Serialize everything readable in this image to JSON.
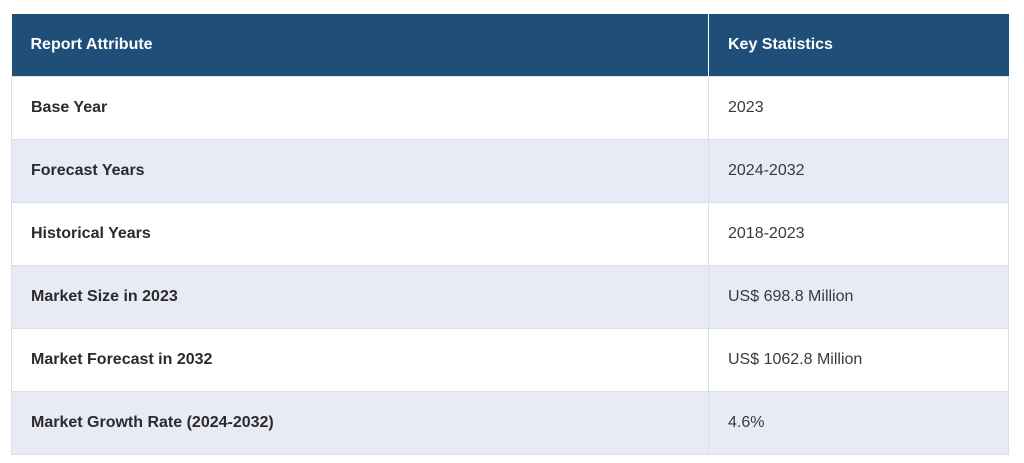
{
  "table": {
    "header": {
      "attribute": "Report Attribute",
      "statistics": "Key Statistics"
    },
    "rows": [
      {
        "attribute": "Base Year",
        "value": "2023"
      },
      {
        "attribute": "Forecast Years",
        "value": "2024-2032"
      },
      {
        "attribute": "Historical Years",
        "value": "2018-2023"
      },
      {
        "attribute": "Market Size in 2023",
        "value": "US$ 698.8 Million"
      },
      {
        "attribute": "Market Forecast in 2032",
        "value": "US$ 1062.8 Million"
      },
      {
        "attribute": "Market Growth Rate (2024-2032)",
        "value": "4.6%"
      }
    ]
  },
  "colors": {
    "header_bg": "#1f4e79",
    "header_text": "#ffffff",
    "row_alt_bg": "#e8eaf5",
    "row_bg": "#ffffff"
  }
}
